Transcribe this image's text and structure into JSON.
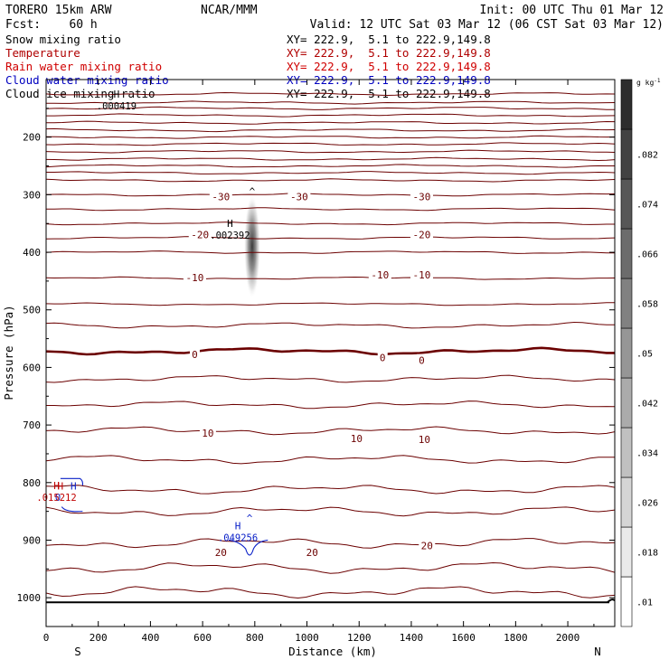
{
  "header": {
    "model": "TORERO   15km ARW",
    "forecast": "Fcst:    60 h",
    "center": "NCAR/MMM",
    "init": "Init: 00 UTC Thu 01 Mar 12",
    "valid": "Valid: 12 UTC Sat 03 Mar 12 (06 CST Sat 03 Mar 12)"
  },
  "fields": [
    {
      "name": "Snow mixing ratio",
      "xy": "",
      "color": "#000000"
    },
    {
      "name": "Temperature",
      "xy": "XY= 222.9,  5.1 to 222.9,149.8",
      "color": "#b00000"
    },
    {
      "name": "Rain water mixing ratio",
      "xy": "XY= 222.9,  5.1 to 222.9,149.8",
      "color": "#d00000"
    },
    {
      "name": "Cloud water mixing ratio",
      "xy": "XY= 222.9,  5.1 to 222.9,149.8",
      "color": "#0000c0"
    },
    {
      "name": "Cloud ice mixing ratio",
      "xy": "XY= 222.9,  5.1 to 222.9,149.8",
      "color": "#000000"
    }
  ],
  "top_xy": "XY= 222.9,  5.1 to 222.9,149.8",
  "colors": {
    "temperature": "#6b0000",
    "freezing": "#6b0000",
    "cloud_water": "#0a20c8",
    "rain": "#c00000",
    "ground": "#000000"
  },
  "chart_data": {
    "type": "heatmap",
    "xlabel": "Distance (km)",
    "ylabel": "Pressure (hPa)",
    "xlim": [
      0,
      2180
    ],
    "ylim": [
      1050,
      100
    ],
    "xticks": [
      0,
      200,
      400,
      600,
      800,
      1000,
      1200,
      1400,
      1600,
      1800,
      2000
    ],
    "xtick_labels": [
      "0",
      "200",
      "400",
      "600",
      "800",
      "1000",
      "1200",
      "1400",
      "1600",
      "1800",
      "2000"
    ],
    "yticks": [
      200,
      300,
      400,
      500,
      600,
      700,
      800,
      900,
      1000
    ],
    "ytick_labels": [
      "200",
      "300",
      "400",
      "500",
      "600",
      "700",
      "800",
      "900",
      "1000"
    ],
    "endpoints": {
      "start": "S",
      "end": "N"
    },
    "colorbar": {
      "unit": "g kg",
      "unit_exp": "-1",
      "levels": [
        0.01,
        0.018,
        0.026,
        0.034,
        0.042,
        0.05,
        0.058,
        0.066,
        0.074,
        0.082
      ],
      "labels": [
        ".01",
        ".018",
        ".026",
        ".034",
        ".042",
        ".05",
        ".058",
        ".066",
        ".074",
        ".082"
      ]
    },
    "temperature_isotherm_pressures": [
      125,
      140,
      150,
      162,
      175,
      188,
      200,
      212,
      225,
      238,
      250,
      262,
      275,
      300,
      325,
      350,
      375,
      400,
      445,
      490,
      527,
      572,
      620,
      665,
      710,
      760,
      812,
      850,
      905,
      948,
      990
    ],
    "freezing_level_hPa": 572,
    "temperature_labels": [
      {
        "text": "-30",
        "x": 670,
        "p": 304
      },
      {
        "text": "-30",
        "x": 970,
        "p": 304
      },
      {
        "text": "-30",
        "x": 1440,
        "p": 304
      },
      {
        "text": "-20",
        "x": 590,
        "p": 370
      },
      {
        "text": "-20",
        "x": 1440,
        "p": 370
      },
      {
        "text": "-10",
        "x": 570,
        "p": 445
      },
      {
        "text": "-10",
        "x": 1280,
        "p": 440
      },
      {
        "text": "-10",
        "x": 1440,
        "p": 440
      },
      {
        "text": "0",
        "x": 570,
        "p": 578
      },
      {
        "text": "0",
        "x": 1290,
        "p": 584
      },
      {
        "text": "0",
        "x": 1440,
        "p": 588
      },
      {
        "text": "10",
        "x": 620,
        "p": 715
      },
      {
        "text": "10",
        "x": 1190,
        "p": 724
      },
      {
        "text": "10",
        "x": 1450,
        "p": 726
      },
      {
        "text": "20",
        "x": 670,
        "p": 922
      },
      {
        "text": "20",
        "x": 1020,
        "p": 922
      },
      {
        "text": "20",
        "x": 1460,
        "p": 910
      }
    ],
    "extrema": [
      {
        "mark": "H",
        "value": ".000419",
        "x": 270,
        "p": 150,
        "field": "snow"
      },
      {
        "mark": "H",
        "value": ".002392",
        "x": 705,
        "p": 375,
        "field": "ice"
      },
      {
        "mark": "H",
        "value": ".049256",
        "x": 735,
        "p": 900,
        "field": "cloud_water"
      },
      {
        "mark": "H",
        "value": "0",
        "x": 80,
        "p": 830,
        "field": "cloud_water"
      },
      {
        "mark": "H",
        "value": ".015212",
        "x": 40,
        "p": 830,
        "field": "rain"
      }
    ],
    "overlay_labels": [
      {
        "mark": "H",
        "x": 55,
        "p": 812,
        "field": "rain"
      },
      {
        "mark": "H",
        "x": 105,
        "p": 812,
        "field": "cloud_water"
      }
    ],
    "ice_core": {
      "x": 790,
      "p_top": 300,
      "p_bottom": 480,
      "max": 0.082
    }
  }
}
